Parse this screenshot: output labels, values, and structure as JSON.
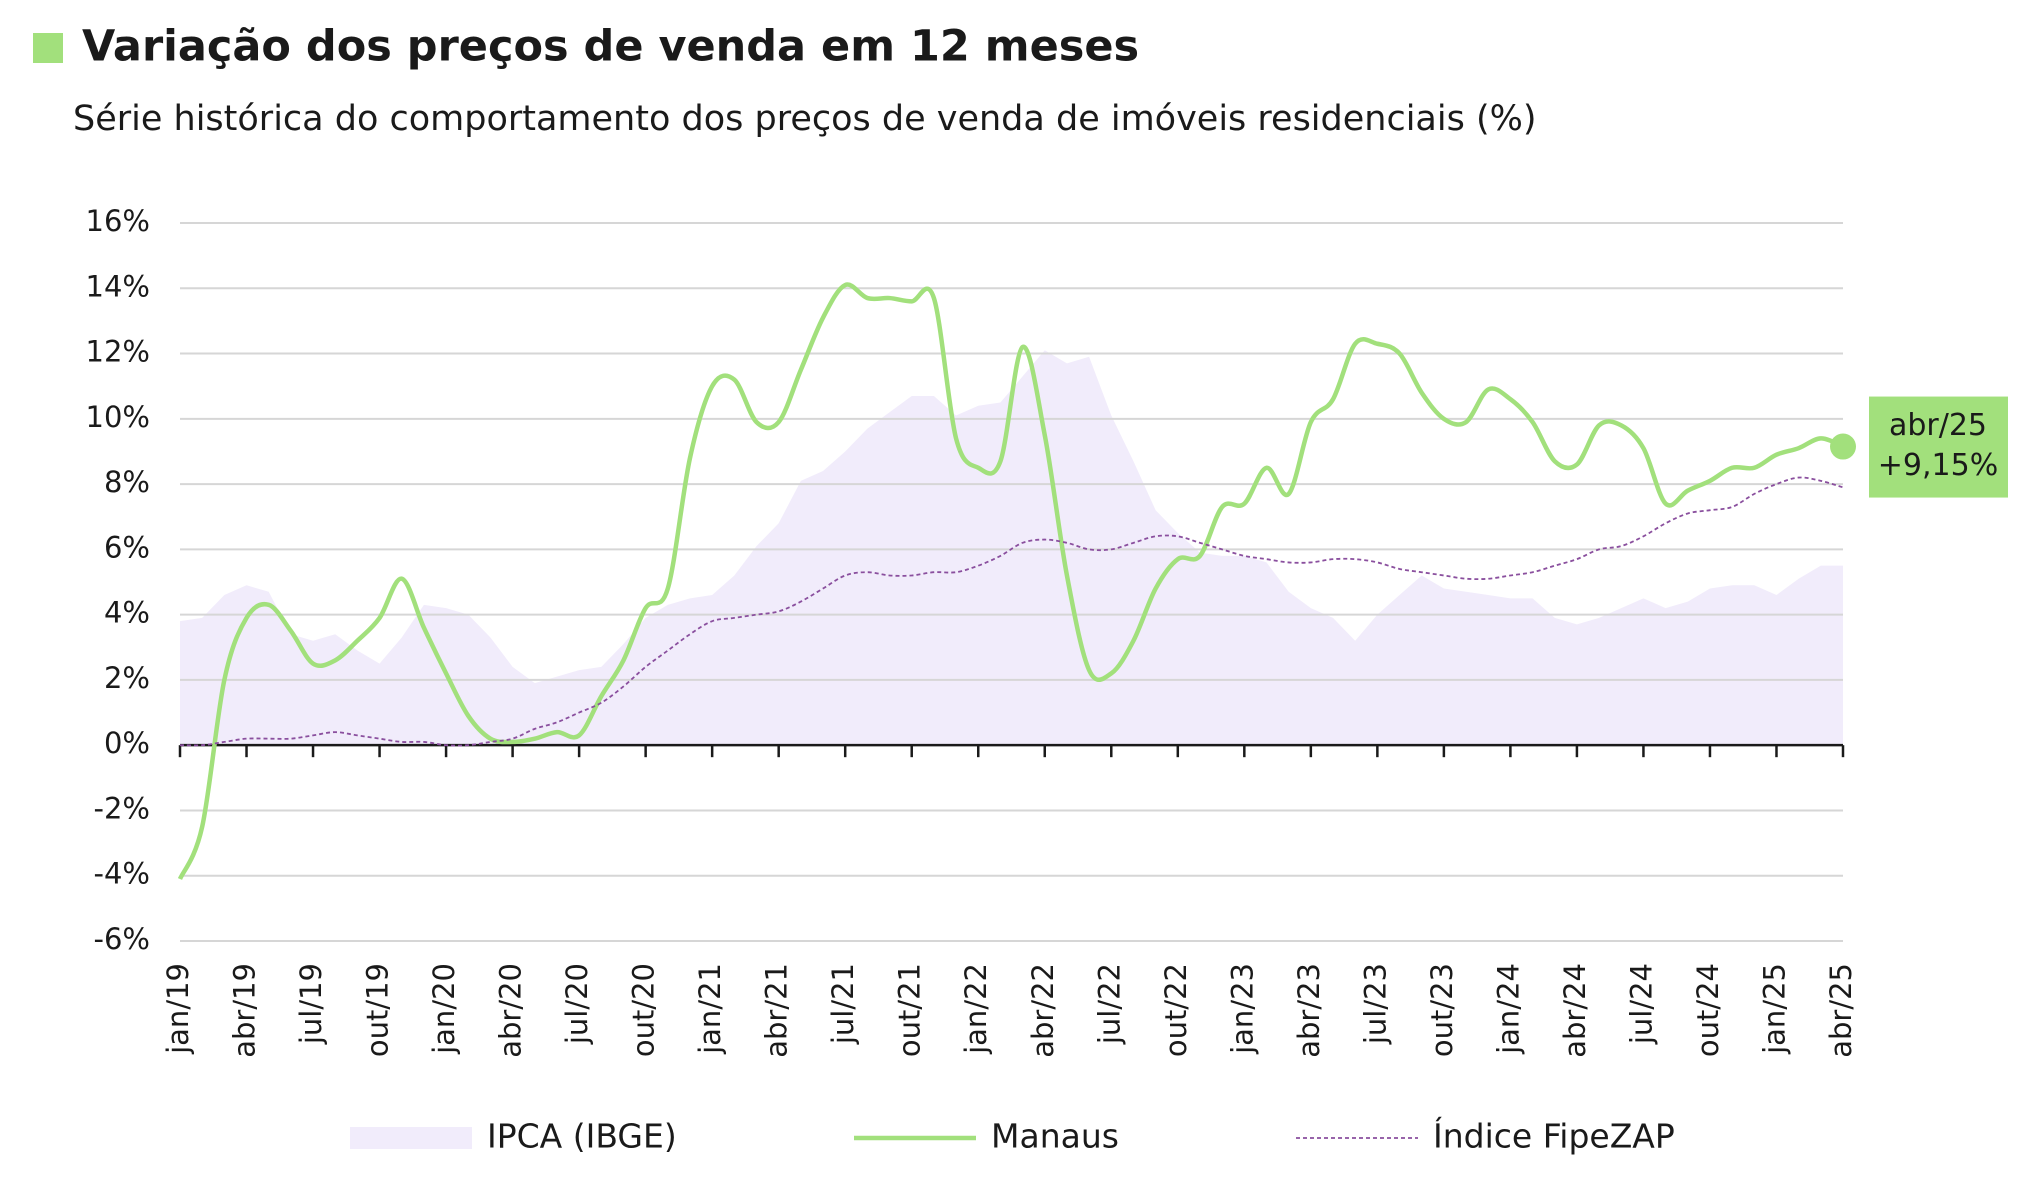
{
  "chart_data": {
    "type": "line",
    "title": "Variação dos preços de venda em 12 meses",
    "subtitle": "Série histórica do comportamento dos preços de venda de imóveis residenciais (%)",
    "categories": [
      "jan/19",
      null,
      null,
      "abr/19",
      null,
      null,
      "jul/19",
      null,
      null,
      "out/19",
      null,
      null,
      "jan/20",
      null,
      null,
      "abr/20",
      null,
      null,
      "jul/20",
      null,
      null,
      "out/20",
      null,
      null,
      "jan/21",
      null,
      null,
      "abr/21",
      null,
      null,
      "jul/21",
      null,
      null,
      "out/21",
      null,
      null,
      "jan/22",
      null,
      null,
      "abr/22",
      null,
      null,
      "jul/22",
      null,
      null,
      "out/22",
      null,
      null,
      "jan/23",
      null,
      null,
      "abr/23",
      null,
      null,
      "jul/23",
      null,
      null,
      "out/23",
      null,
      null,
      "jan/24",
      null,
      null,
      "abr/24",
      null,
      null,
      "jul/24",
      null,
      null,
      "out/24",
      null,
      null,
      "jan/25",
      null,
      null,
      "abr/25"
    ],
    "series": [
      {
        "name": "IPCA (IBGE)",
        "style": "area",
        "color": "#f1ecfb",
        "values": [
          3.8,
          3.9,
          4.6,
          4.9,
          4.7,
          3.4,
          3.2,
          3.4,
          2.9,
          2.5,
          3.3,
          4.3,
          4.2,
          4.0,
          3.3,
          2.4,
          1.9,
          2.1,
          2.3,
          2.4,
          3.1,
          3.9,
          4.3,
          4.5,
          4.6,
          5.2,
          6.1,
          6.8,
          8.1,
          8.4,
          9.0,
          9.7,
          10.2,
          10.7,
          10.7,
          10.1,
          10.4,
          10.5,
          11.3,
          12.1,
          11.7,
          11.9,
          10.1,
          8.7,
          7.2,
          6.5,
          5.9,
          5.8,
          5.8,
          5.6,
          4.7,
          4.2,
          3.9,
          3.2,
          4.0,
          4.6,
          5.2,
          4.8,
          4.7,
          4.6,
          4.5,
          4.5,
          3.9,
          3.7,
          3.9,
          4.2,
          4.5,
          4.2,
          4.4,
          4.8,
          4.9,
          4.9,
          4.6,
          5.1,
          5.5,
          5.5
        ]
      },
      {
        "name": "Manaus",
        "style": "line",
        "color": "#a2e07c",
        "values": [
          -4.1,
          -2.5,
          2.0,
          3.9,
          4.3,
          3.5,
          2.5,
          2.6,
          3.2,
          3.9,
          5.1,
          3.6,
          2.2,
          0.9,
          0.2,
          0.1,
          0.2,
          0.4,
          0.3,
          1.5,
          2.6,
          4.2,
          4.8,
          8.8,
          11.0,
          11.2,
          9.9,
          9.9,
          11.5,
          13.1,
          14.1,
          13.7,
          13.7,
          13.6,
          13.7,
          9.4,
          8.5,
          8.7,
          12.2,
          9.5,
          5.2,
          2.3,
          2.2,
          3.2,
          4.8,
          5.7,
          5.8,
          7.3,
          7.4,
          8.5,
          7.7,
          9.9,
          10.6,
          12.3,
          12.3,
          12.0,
          10.8,
          10.0,
          9.9,
          10.9,
          10.6,
          9.9,
          8.7,
          8.6,
          9.8,
          9.8,
          9.1,
          7.4,
          7.8,
          8.1,
          8.5,
          8.5,
          8.9,
          9.1,
          9.4,
          9.15
        ],
        "value_labels": [
          null,
          null,
          null,
          null,
          null,
          null,
          null,
          null,
          null,
          null,
          null,
          null,
          null,
          null,
          null,
          null,
          null,
          null,
          null,
          null,
          null,
          null,
          null,
          null,
          null,
          null,
          null,
          null,
          null,
          null,
          null,
          null,
          null,
          null,
          null,
          null,
          null,
          null,
          null,
          null,
          null,
          null,
          null,
          null,
          null,
          null,
          null,
          null,
          null,
          null,
          null,
          null,
          null,
          null,
          null,
          null,
          null,
          null,
          null,
          null,
          null,
          null,
          null,
          null,
          null,
          null,
          null,
          null,
          null,
          null,
          null,
          null,
          null,
          null,
          null,
          "+9,15%"
        ]
      },
      {
        "name": "Índice FipeZAP",
        "style": "dashed",
        "color": "#8a4f9e",
        "values": [
          0.0,
          0.0,
          0.1,
          0.2,
          0.2,
          0.2,
          0.3,
          0.4,
          0.3,
          0.2,
          0.1,
          0.1,
          0.0,
          0.0,
          0.1,
          0.2,
          0.5,
          0.7,
          1.0,
          1.3,
          1.8,
          2.4,
          2.9,
          3.4,
          3.8,
          3.9,
          4.0,
          4.1,
          4.4,
          4.8,
          5.2,
          5.3,
          5.2,
          5.2,
          5.3,
          5.3,
          5.5,
          5.8,
          6.2,
          6.3,
          6.2,
          6.0,
          6.0,
          6.2,
          6.4,
          6.4,
          6.2,
          6.0,
          5.8,
          5.7,
          5.6,
          5.6,
          5.7,
          5.7,
          5.6,
          5.4,
          5.3,
          5.2,
          5.1,
          5.1,
          5.2,
          5.3,
          5.5,
          5.7,
          6.0,
          6.1,
          6.4,
          6.8,
          7.1,
          7.2,
          7.3,
          7.7,
          8.0,
          8.2,
          8.1,
          7.9
        ]
      }
    ],
    "ylim": [
      -6,
      16
    ],
    "yticks": [
      {
        "value": -6,
        "label": "-6%"
      },
      {
        "value": -4,
        "label": "-4%"
      },
      {
        "value": -2,
        "label": "-2%"
      },
      {
        "value": 0,
        "label": "0%"
      },
      {
        "value": 2,
        "label": "2%"
      },
      {
        "value": 4,
        "label": "4%"
      },
      {
        "value": 6,
        "label": "6%"
      },
      {
        "value": 8,
        "label": "8%"
      },
      {
        "value": 10,
        "label": "10%"
      },
      {
        "value": 12,
        "label": "12%"
      },
      {
        "value": 14,
        "label": "14%"
      },
      {
        "value": 16,
        "label": "16%"
      }
    ],
    "grid": true
  }
}
